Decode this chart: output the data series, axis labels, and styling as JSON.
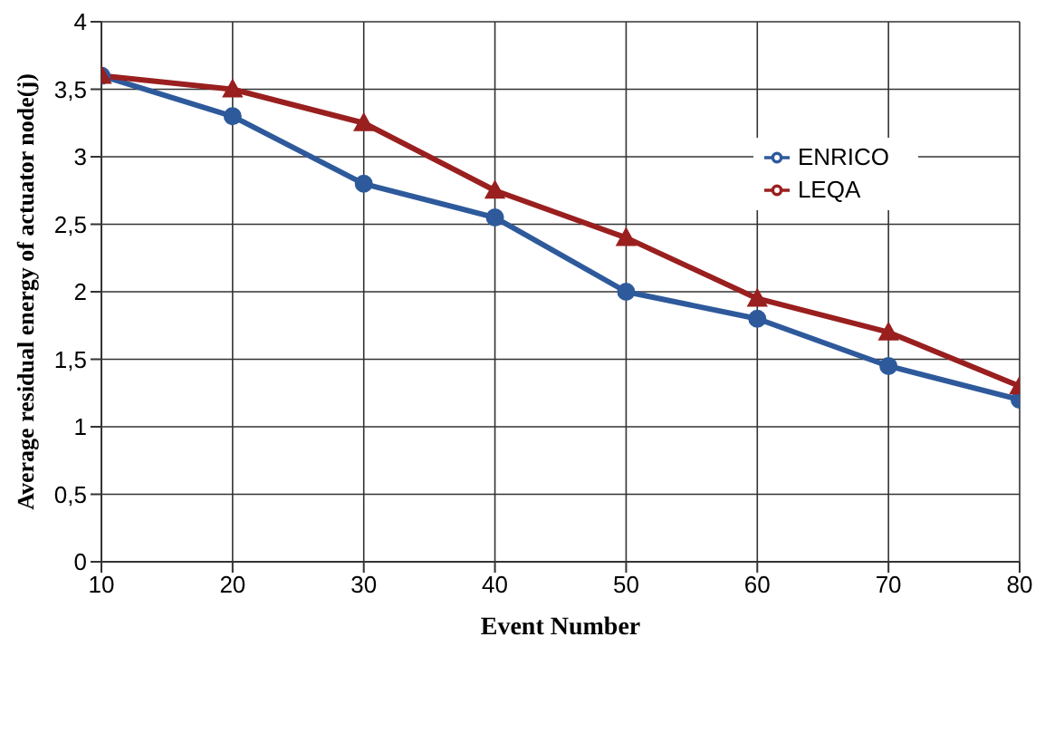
{
  "chart_data": {
    "type": "line",
    "xlabel": "Event Number",
    "ylabel": "Average residual energy of actuator node(j)",
    "x": [
      10,
      20,
      30,
      40,
      50,
      60,
      70,
      80
    ],
    "series": [
      {
        "name": "ENRICO",
        "color": "#2e5a9c",
        "marker": "circle",
        "values": [
          3.6,
          3.3,
          2.8,
          2.55,
          2.0,
          1.8,
          1.45,
          1.2
        ]
      },
      {
        "name": "LEQA",
        "color": "#9a1f1f",
        "marker": "triangle",
        "values": [
          3.6,
          3.5,
          3.25,
          2.75,
          2.4,
          1.95,
          1.7,
          1.3
        ]
      }
    ],
    "xlim": [
      10,
      80
    ],
    "xticks": [
      10,
      20,
      30,
      40,
      50,
      60,
      70,
      80
    ],
    "ylim": [
      0,
      4
    ],
    "yticks": [
      0,
      {
        "value": 0.5,
        "label": "0,5"
      },
      1,
      {
        "value": 1.5,
        "label": "1,5"
      },
      2,
      {
        "value": 2.5,
        "label": "2,5"
      },
      3,
      {
        "value": 3.5,
        "label": "3,5"
      },
      4
    ],
    "grid": true,
    "legend": "right",
    "line_style": "solid"
  }
}
